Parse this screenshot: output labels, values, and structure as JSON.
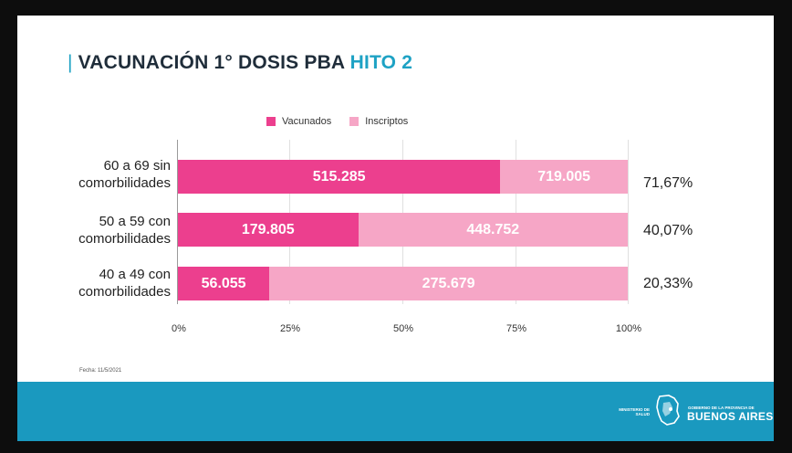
{
  "title_prefix": "VACUNACIÓN 1° DOSIS PBA",
  "title_highlight": "HITO 2",
  "fecha": "Fecha: 11/5/2021",
  "footer": {
    "ministerio": "MINISTERIO DE SALUD",
    "gobierno": "GOBIERNO DE LA PROVINCIA DE",
    "provincia": "BUENOS AIRES"
  },
  "colors": {
    "vacunados": "#ec3f8e",
    "inscriptos": "#f6a6c6",
    "accent": "#1ea2c4",
    "footer": "#1a99bf"
  },
  "chart_data": {
    "type": "bar",
    "orientation": "horizontal",
    "stacked": true,
    "normalized_percent": true,
    "title": "VACUNACIÓN 1° DOSIS PBA HITO 2",
    "categories": [
      {
        "line1": "60 a 69 sin",
        "line2": "comorbilidades"
      },
      {
        "line1": "50 a 59 con",
        "line2": "comorbilidades"
      },
      {
        "line1": "40 a 49 con",
        "line2": "comorbilidades"
      }
    ],
    "series": [
      {
        "name": "Vacunados",
        "values": [
          71.67,
          40.07,
          20.33
        ],
        "labels": [
          "515.285",
          "179.805",
          "56.055"
        ]
      },
      {
        "name": "Inscriptos",
        "values": [
          28.33,
          59.93,
          79.67
        ],
        "labels": [
          "719.005",
          "448.752",
          "275.679"
        ]
      }
    ],
    "percent_labels": [
      "71,67%",
      "40,07%",
      "20,33%"
    ],
    "xticks": [
      "0%",
      "25%",
      "50%",
      "75%",
      "100%"
    ],
    "xlim": [
      0,
      100
    ],
    "legend": "top"
  }
}
